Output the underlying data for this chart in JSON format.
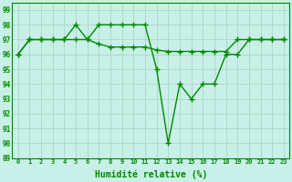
{
  "title": "",
  "xlabel": "Humidité relative (%)",
  "ylabel": "",
  "background_color": "#c8f0e8",
  "grid_color": "#b0d8cc",
  "line_color": "#008800",
  "xlim": [
    -0.5,
    23.5
  ],
  "ylim": [
    89,
    99.5
  ],
  "yticks": [
    89,
    90,
    91,
    92,
    93,
    94,
    95,
    96,
    97,
    98,
    99
  ],
  "xticks": [
    0,
    1,
    2,
    3,
    4,
    5,
    6,
    7,
    8,
    9,
    10,
    11,
    12,
    13,
    14,
    15,
    16,
    17,
    18,
    19,
    20,
    21,
    22,
    23
  ],
  "xtick_labels": [
    "0",
    "1",
    "2",
    "3",
    "4",
    "5",
    "6",
    "7",
    "8",
    "9",
    "10",
    "11",
    "12",
    "13",
    "14",
    "15",
    "16",
    "17",
    "18",
    "19",
    "20",
    "21",
    "22",
    "23"
  ],
  "series1_x": [
    0,
    1,
    2,
    3,
    4,
    5,
    6,
    7,
    8,
    9,
    10,
    11,
    12,
    13,
    14,
    15,
    16,
    17,
    18,
    19,
    20,
    21,
    22,
    23
  ],
  "series1_y": [
    96,
    97,
    97,
    97,
    97,
    97,
    97,
    96.7,
    96.5,
    96.5,
    96.5,
    96.5,
    96.3,
    96.2,
    96.2,
    96.2,
    96.2,
    96.2,
    96.2,
    97,
    97,
    97,
    97,
    97
  ],
  "series2_x": [
    0,
    1,
    2,
    3,
    4,
    5,
    6,
    7,
    8,
    9,
    10,
    11,
    12,
    13,
    14,
    15,
    16,
    17,
    18,
    19,
    20,
    21,
    22,
    23
  ],
  "series2_y": [
    96,
    97,
    97,
    97,
    97,
    98,
    97,
    98,
    98,
    98,
    98,
    98,
    95,
    90,
    94,
    93,
    94,
    94,
    96,
    96,
    97,
    97,
    97,
    97
  ],
  "marker": "+",
  "markersize": 4,
  "linewidth": 1.0
}
